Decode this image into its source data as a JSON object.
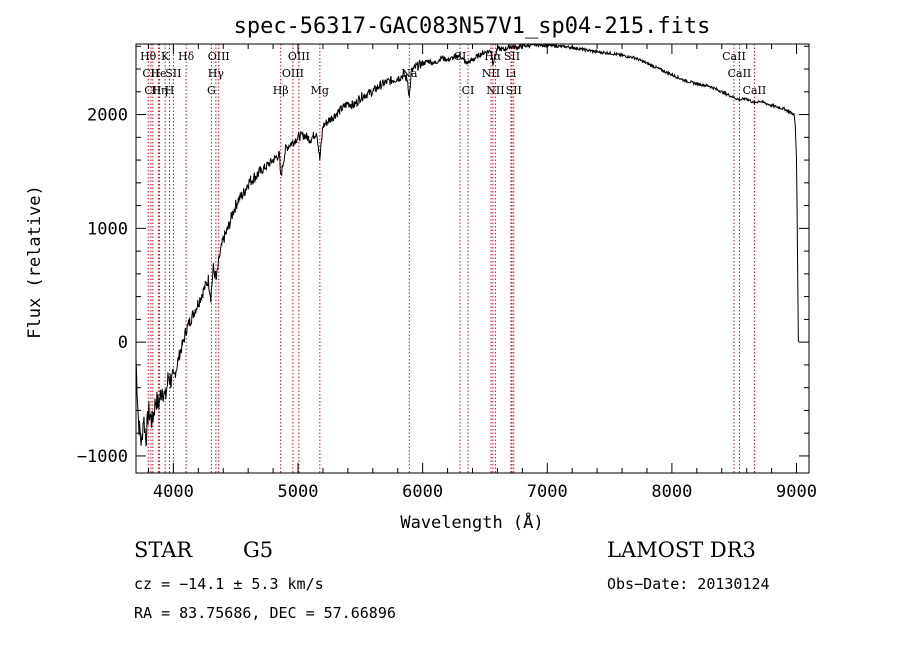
{
  "chart_data": {
    "type": "line",
    "title": "spec-56317-GAC083N57V1_sp04-215.fits",
    "xlabel": "Wavelength (Å)",
    "ylabel": "Flux (relative)",
    "xlim": [
      3700,
      9100
    ],
    "ylim": [
      -1150,
      2620
    ],
    "xticks": [
      4000,
      5000,
      6000,
      7000,
      8000,
      9000
    ],
    "xtick_labels": [
      "4000",
      "5000",
      "6000",
      "7000",
      "8000",
      "9000"
    ],
    "yticks": [
      -1000,
      0,
      1000,
      2000
    ],
    "ytick_labels": [
      "−1000",
      "0",
      "1000",
      "2000"
    ],
    "grid": false,
    "series": [
      {
        "name": "spectrum",
        "x": [
          3700,
          3720,
          3745,
          3760,
          3780,
          3800,
          3830,
          3860,
          3880,
          3910,
          3935,
          3960,
          3990,
          4020,
          4050,
          4080,
          4100,
          4130,
          4160,
          4200,
          4240,
          4280,
          4300,
          4320,
          4345,
          4370,
          4400,
          4440,
          4480,
          4520,
          4560,
          4600,
          4650,
          4700,
          4750,
          4800,
          4850,
          4861,
          4900,
          4950,
          5000,
          5050,
          5100,
          5150,
          5175,
          5200,
          5250,
          5300,
          5350,
          5400,
          5450,
          5500,
          5550,
          5600,
          5650,
          5700,
          5750,
          5800,
          5850,
          5880,
          5893,
          5910,
          5950,
          6000,
          6050,
          6100,
          6150,
          6200,
          6250,
          6300,
          6350,
          6400,
          6450,
          6500,
          6550,
          6563,
          6600,
          6650,
          6700,
          6750,
          6800,
          6850,
          6900,
          6950,
          7000,
          7100,
          7200,
          7300,
          7400,
          7500,
          7600,
          7700,
          7800,
          7900,
          8000,
          8100,
          8200,
          8300,
          8400,
          8498,
          8542,
          8600,
          8662,
          8700,
          8800,
          8900,
          8950,
          8980,
          8990,
          9000,
          9010,
          9015
        ],
        "values": [
          -150,
          -700,
          -900,
          -650,
          -850,
          -600,
          -700,
          -500,
          -550,
          -400,
          -500,
          -300,
          -350,
          -250,
          -100,
          0,
          100,
          180,
          250,
          350,
          450,
          550,
          400,
          650,
          550,
          750,
          900,
          1000,
          1150,
          1250,
          1300,
          1400,
          1450,
          1500,
          1550,
          1600,
          1650,
          1450,
          1700,
          1750,
          1800,
          1820,
          1780,
          1850,
          1600,
          1900,
          1950,
          2000,
          2050,
          2100,
          2080,
          2150,
          2180,
          2200,
          2250,
          2280,
          2300,
          2320,
          2350,
          2300,
          2150,
          2380,
          2420,
          2450,
          2470,
          2450,
          2500,
          2480,
          2500,
          2520,
          2450,
          2480,
          2520,
          2550,
          2560,
          2450,
          2580,
          2570,
          2600,
          2590,
          2600,
          2610,
          2620,
          2620,
          2610,
          2600,
          2590,
          2570,
          2550,
          2540,
          2520,
          2500,
          2450,
          2400,
          2350,
          2300,
          2270,
          2250,
          2200,
          2150,
          2130,
          2140,
          2100,
          2120,
          2080,
          2050,
          2020,
          2000,
          1900,
          1600,
          500,
          0
        ]
      }
    ],
    "lines": [
      {
        "name": "Hθ",
        "wavelength": 3798,
        "label_row": 1
      },
      {
        "name": "CII",
        "wavelength": 3820,
        "label_row": 2
      },
      {
        "name": "CII",
        "wavelength": 3835,
        "label_row": 3
      },
      {
        "name": "Hη",
        "wavelength": 3889,
        "label_row": 3
      },
      {
        "name": "K",
        "wavelength": 3934,
        "label_row": 1
      },
      {
        "name": "He",
        "wavelength": 3880,
        "label_row": 2
      },
      {
        "name": "H",
        "wavelength": 3969,
        "label_row": 3
      },
      {
        "name": "SII",
        "wavelength": 4000,
        "label_row": 2
      },
      {
        "name": "Hδ",
        "wavelength": 4102,
        "label_row": 1
      },
      {
        "name": "OIII",
        "wavelength": 4364,
        "label_row": 1
      },
      {
        "name": "Hγ",
        "wavelength": 4341,
        "label_row": 2
      },
      {
        "name": "G",
        "wavelength": 4305,
        "label_row": 3
      },
      {
        "name": "Hβ",
        "wavelength": 4861,
        "label_row": 3
      },
      {
        "name": "OIII",
        "wavelength": 4959,
        "label_row": 2
      },
      {
        "name": "OIII",
        "wavelength": 5007,
        "label_row": 1
      },
      {
        "name": "Mg",
        "wavelength": 5175,
        "label_row": 3
      },
      {
        "name": "Na",
        "wavelength": 5893,
        "label_row": 2
      },
      {
        "name": "CI",
        "wavelength": 6300,
        "label_row": 1
      },
      {
        "name": "CI",
        "wavelength": 6364,
        "label_row": 3
      },
      {
        "name": "Hα",
        "wavelength": 6563,
        "label_row": 1
      },
      {
        "name": "NII",
        "wavelength": 6548,
        "label_row": 2
      },
      {
        "name": "NII",
        "wavelength": 6584,
        "label_row": 3
      },
      {
        "name": "SII",
        "wavelength": 6717,
        "label_row": 1
      },
      {
        "name": "Li",
        "wavelength": 6708,
        "label_row": 2
      },
      {
        "name": "SII",
        "wavelength": 6731,
        "label_row": 3
      },
      {
        "name": "CaII",
        "wavelength": 8498,
        "label_row": 1
      },
      {
        "name": "CaII",
        "wavelength": 8542,
        "label_row": 2
      },
      {
        "name": "CaII",
        "wavelength": 8662,
        "label_row": 3
      }
    ]
  },
  "info": {
    "object_type": "STAR",
    "subclass": "G5",
    "survey": "LAMOST DR3",
    "redshift": "cz = −14.1 ± 5.3 km/s",
    "obs_date": "Obs−Date: 20130124",
    "coords": "RA =  83.75686, DEC =  57.66896"
  },
  "colors": {
    "spectrum": "#000000",
    "line_marker": "#c8141e",
    "axes": "#000000",
    "background": "#ffffff"
  }
}
